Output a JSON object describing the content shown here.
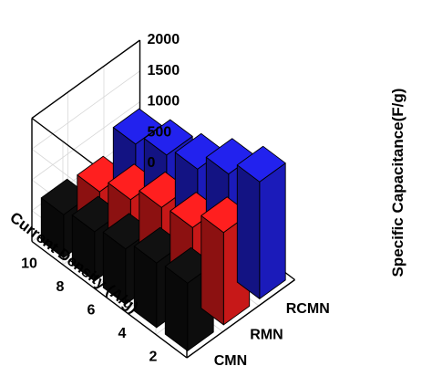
{
  "chart_data": {
    "type": "bar3d",
    "xlabel": "Current Density (A/g)",
    "ylabel": "",
    "zlabel": "Specific Capacitance(F/g)",
    "x_categories": [
      "2",
      "4",
      "6",
      "8",
      "10"
    ],
    "y_categories": [
      "CMN",
      "RMN",
      "RCMN"
    ],
    "zlim": [
      0,
      2000
    ],
    "z_ticks": [
      0,
      500,
      1000,
      1500,
      2000
    ],
    "grid": true,
    "series": [
      {
        "name": "CMN",
        "color": "#111111",
        "values": [
          1100,
          1050,
          900,
          800,
          700
        ]
      },
      {
        "name": "RMN",
        "color": "#ff1f1f",
        "values": [
          1500,
          1200,
          1150,
          900,
          650
        ]
      },
      {
        "name": "RCMN",
        "color": "#2222ee",
        "values": [
          1900,
          1650,
          1350,
          1200,
          1000
        ]
      }
    ]
  }
}
